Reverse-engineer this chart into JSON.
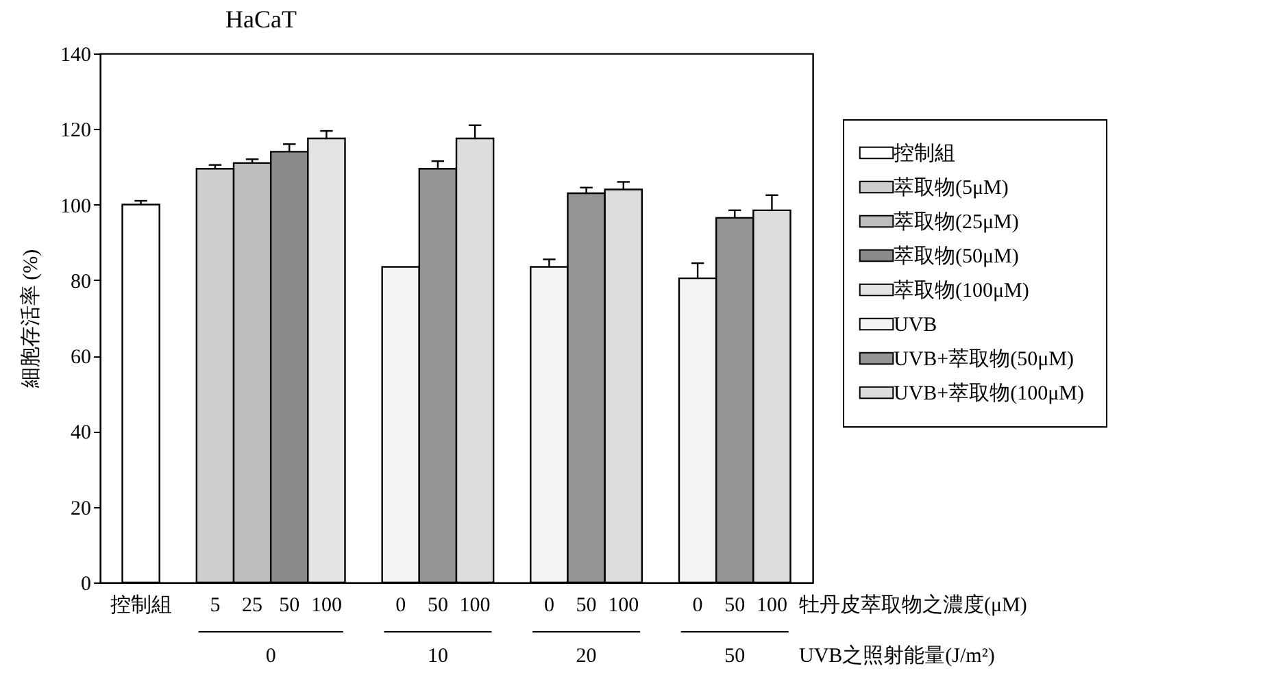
{
  "chart_data": {
    "type": "bar",
    "title": "HaCaT",
    "ylabel": "細胞存活率 (%)",
    "categories": [
      "控制組",
      null,
      "5",
      "25",
      "50",
      "100",
      null,
      "0",
      "50",
      "100",
      null,
      "0",
      "50",
      "100",
      null,
      "0",
      "50",
      "100"
    ],
    "series": [
      {
        "name": "控制組",
        "color": "#ffffff",
        "values": [
          100,
          null,
          null,
          null,
          null,
          null,
          null,
          null,
          null,
          null,
          null,
          null,
          null,
          null,
          null,
          null,
          null,
          null
        ],
        "errors": [
          1,
          null,
          null,
          null,
          null,
          null,
          null,
          null,
          null,
          null,
          null,
          null,
          null,
          null,
          null,
          null,
          null,
          null
        ]
      },
      {
        "name": "萃取物(5μM)",
        "color": "#cfcfcf",
        "values": [
          null,
          null,
          109.5,
          null,
          null,
          null,
          null,
          null,
          null,
          null,
          null,
          null,
          null,
          null,
          null,
          null,
          null,
          null
        ],
        "errors": [
          null,
          null,
          1,
          null,
          null,
          null,
          null,
          null,
          null,
          null,
          null,
          null,
          null,
          null,
          null,
          null,
          null,
          null
        ]
      },
      {
        "name": "萃取物(25μM)",
        "color": "#bdbdbd",
        "values": [
          null,
          null,
          null,
          111,
          null,
          null,
          null,
          null,
          null,
          null,
          null,
          null,
          null,
          null,
          null,
          null,
          null,
          null
        ],
        "errors": [
          null,
          null,
          null,
          1,
          null,
          null,
          null,
          null,
          null,
          null,
          null,
          null,
          null,
          null,
          null,
          null,
          null,
          null
        ]
      },
      {
        "name": "萃取物(50μM)",
        "color": "#8a8a8a",
        "values": [
          null,
          null,
          null,
          null,
          114,
          null,
          null,
          null,
          null,
          null,
          null,
          null,
          null,
          null,
          null,
          null,
          null,
          null
        ],
        "errors": [
          null,
          null,
          null,
          null,
          2,
          null,
          null,
          null,
          null,
          null,
          null,
          null,
          null,
          null,
          null,
          null,
          null,
          null
        ]
      },
      {
        "name": "萃取物(100μM)",
        "color": "#e3e3e3",
        "values": [
          null,
          null,
          null,
          null,
          null,
          117.5,
          null,
          null,
          null,
          null,
          null,
          null,
          null,
          null,
          null,
          null,
          null,
          null
        ],
        "errors": [
          null,
          null,
          null,
          null,
          null,
          2,
          null,
          null,
          null,
          null,
          null,
          null,
          null,
          null,
          null,
          null,
          null,
          null
        ]
      },
      {
        "name": "UVB",
        "color": "#f4f4f4",
        "values": [
          null,
          null,
          null,
          null,
          null,
          null,
          null,
          83.5,
          null,
          null,
          null,
          83.5,
          null,
          null,
          null,
          80.5,
          null,
          null
        ],
        "errors": [
          null,
          null,
          null,
          null,
          null,
          null,
          null,
          null,
          null,
          null,
          null,
          2,
          null,
          null,
          null,
          4,
          null,
          null
        ]
      },
      {
        "name": "UVB+萃取物(50μM)",
        "color": "#959595",
        "values": [
          null,
          null,
          null,
          null,
          null,
          null,
          null,
          null,
          109.5,
          null,
          null,
          null,
          103,
          null,
          null,
          null,
          96.5,
          null
        ],
        "errors": [
          null,
          null,
          null,
          null,
          null,
          null,
          null,
          null,
          2,
          null,
          null,
          null,
          1.5,
          null,
          null,
          null,
          2,
          null
        ]
      },
      {
        "name": "UVB+萃取物(100μM)",
        "color": "#dcdcdc",
        "values": [
          null,
          null,
          null,
          null,
          null,
          null,
          null,
          null,
          null,
          117.5,
          null,
          null,
          null,
          104,
          null,
          null,
          null,
          98.5
        ],
        "errors": [
          null,
          null,
          null,
          null,
          null,
          null,
          null,
          null,
          null,
          3.5,
          null,
          null,
          null,
          2,
          null,
          null,
          null,
          4
        ]
      }
    ],
    "annotations": [
      "0",
      "10",
      "20",
      "50",
      "牡丹皮萃取物之濃度(μM)",
      "UVB之照射能量(J/m²)"
    ],
    "ylim": [
      0,
      140
    ],
    "yticks": [
      0,
      20,
      40,
      60,
      80,
      100,
      120,
      140
    ],
    "grid": false,
    "legend": "right"
  }
}
